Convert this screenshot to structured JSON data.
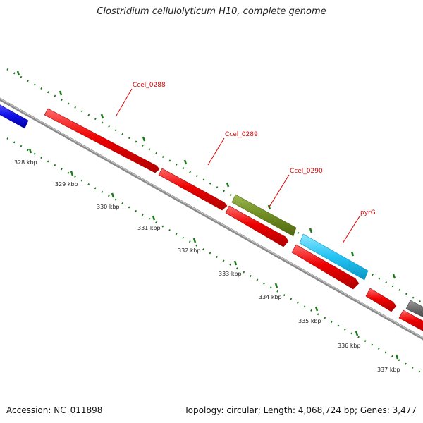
{
  "title": "Clostridium cellulolyticum H10, complete genome",
  "accession": "Accession: NC_011898",
  "summary": "Topology: circular; Length: 4,068,724 bp; Genes: 3,477",
  "colors": {
    "backbone": "#8a8a8a",
    "tick": "#1a7a1a",
    "label": "#e00000",
    "blue_gene": "#1010e8",
    "red_gene": "#ee0000",
    "olive_gene": "#6f8c22",
    "cyan_gene": "#22c4f4",
    "gray_gene": "#6a6a6a"
  },
  "scale_labels": [
    "328 kbp",
    "329 kbp",
    "330 kbp",
    "331 kbp",
    "332 kbp",
    "333 kbp",
    "334 kbp",
    "335 kbp",
    "336 kbp",
    "337 kbp"
  ],
  "gene_labels": [
    "Ccel_0288",
    "Ccel_0289",
    "Ccel_0290",
    "pyrG"
  ]
}
